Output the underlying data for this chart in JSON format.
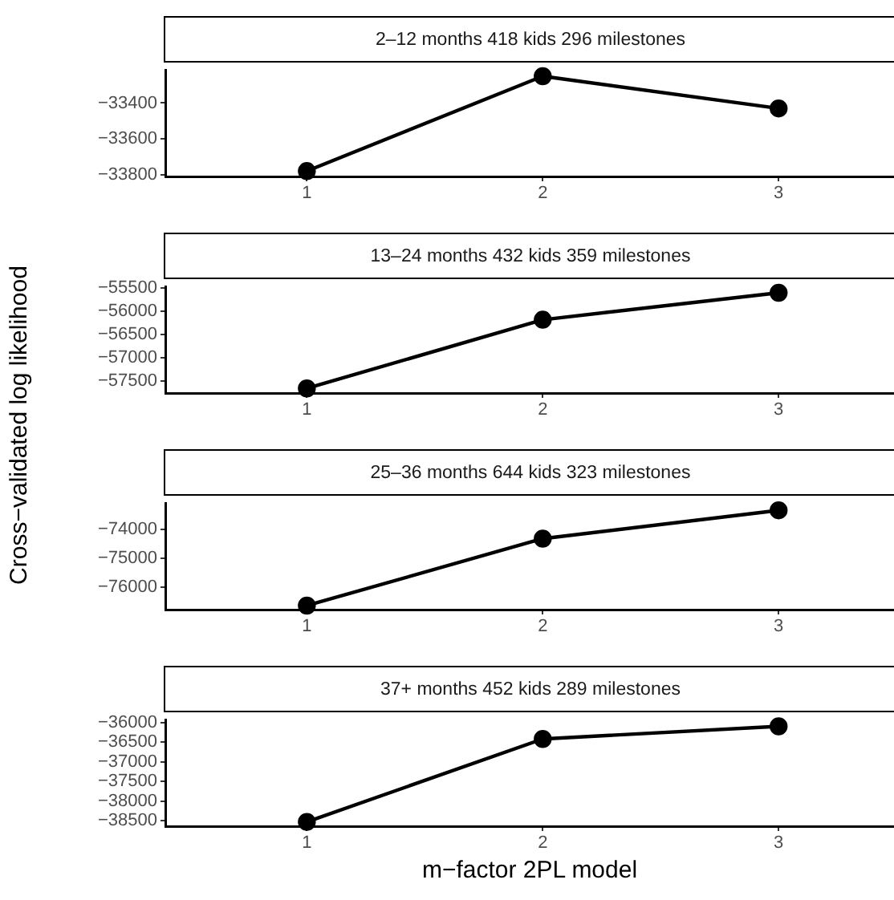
{
  "chart_data": [
    {
      "type": "line",
      "title": "2–12 months 418 kids 296 milestones",
      "ylabel": "Cross−validated log likelihood",
      "categories": [
        "1",
        "2",
        "3"
      ],
      "values": [
        -33780,
        -33250,
        -33430
      ],
      "color": "#000000",
      "ylim": [
        -33810,
        -33215
      ],
      "yticks": [
        {
          "value": -33400,
          "label": "−33400"
        },
        {
          "value": -33600,
          "label": "−33600"
        },
        {
          "value": -33800,
          "label": "−33800"
        }
      ],
      "marker": "circle",
      "line_style": "solid"
    },
    {
      "type": "line",
      "title": "13–24 months 432 kids 359 milestones",
      "categories": [
        "1",
        "2",
        "3"
      ],
      "values": [
        -57660,
        -56180,
        -55600
      ],
      "color": "#000000",
      "ylim": [
        -57760,
        -55465
      ],
      "yticks": [
        {
          "value": -55500,
          "label": "−55500"
        },
        {
          "value": -56000,
          "label": "−56000"
        },
        {
          "value": -56500,
          "label": "−56500"
        },
        {
          "value": -57000,
          "label": "−57000"
        },
        {
          "value": -57500,
          "label": "−57500"
        }
      ],
      "marker": "circle",
      "line_style": "solid"
    },
    {
      "type": "line",
      "title": "25–36 months 644 kids 323 milestones",
      "categories": [
        "1",
        "2",
        "3"
      ],
      "values": [
        -76650,
        -74330,
        -73350
      ],
      "color": "#000000",
      "ylim": [
        -76790,
        -73100
      ],
      "yticks": [
        {
          "value": -74000,
          "label": "−74000"
        },
        {
          "value": -75000,
          "label": "−75000"
        },
        {
          "value": -76000,
          "label": "−76000"
        }
      ],
      "marker": "circle",
      "line_style": "solid"
    },
    {
      "type": "line",
      "title": "37+ months 452 kids 289 milestones",
      "xlabel": "m−factor 2PL model",
      "categories": [
        "1",
        "2",
        "3"
      ],
      "values": [
        -38530,
        -36420,
        -36100
      ],
      "color": "#000000",
      "ylim": [
        -38640,
        -35930
      ],
      "yticks": [
        {
          "value": -36000,
          "label": "−36000"
        },
        {
          "value": -36500,
          "label": "−36500"
        },
        {
          "value": -37000,
          "label": "−37000"
        },
        {
          "value": -37500,
          "label": "−37500"
        },
        {
          "value": -38000,
          "label": "−38000"
        },
        {
          "value": -38500,
          "label": "−38500"
        }
      ],
      "marker": "circle",
      "line_style": "solid"
    }
  ]
}
